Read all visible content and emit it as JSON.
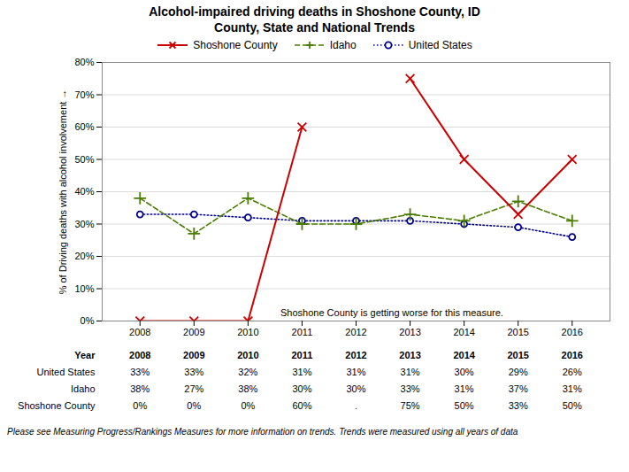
{
  "chart_data": {
    "type": "line",
    "title": "Alcohol-impaired driving deaths in Shoshone County, ID",
    "subtitle": "County, State and National Trends",
    "x": [
      2008,
      2009,
      2010,
      2011,
      2012,
      2013,
      2014,
      2015,
      2016
    ],
    "series": [
      {
        "name": "Shoshone County",
        "color": "#cc0000",
        "marker": "x",
        "line_style": "solid",
        "values": [
          0,
          0,
          0,
          60,
          null,
          75,
          50,
          33,
          50
        ]
      },
      {
        "name": "Idaho",
        "color": "#4a7c00",
        "marker": "plus",
        "line_style": "dashed",
        "values": [
          38,
          27,
          38,
          30,
          30,
          33,
          31,
          37,
          31
        ]
      },
      {
        "name": "United States",
        "color": "#00008b",
        "marker": "circle",
        "line_style": "dotted",
        "values": [
          33,
          33,
          32,
          31,
          31,
          31,
          30,
          29,
          26
        ]
      }
    ],
    "xlim": [
      2007.3,
      2016.7
    ],
    "xticks": [
      2008,
      2009,
      2010,
      2011,
      2012,
      2013,
      2014,
      2015,
      2016
    ],
    "ylim": [
      0,
      80
    ],
    "yticks": [
      {
        "value": 0,
        "label": "0%"
      },
      {
        "value": 10,
        "label": "10%"
      },
      {
        "value": 20,
        "label": "20%"
      },
      {
        "value": 30,
        "label": "30%"
      },
      {
        "value": 40,
        "label": "40%"
      },
      {
        "value": 50,
        "label": "50%"
      },
      {
        "value": 60,
        "label": "60%"
      },
      {
        "value": 70,
        "label": "70%"
      },
      {
        "value": 80,
        "label": "80%"
      }
    ],
    "ylabel": "% of Driving deaths with alcohol involvement",
    "grid": "y",
    "legend": "top",
    "annotations": [
      {
        "text": "Shoshone County is getting worse for this measure.",
        "x": 2010.6,
        "y": 1.5
      }
    ],
    "table": {
      "header": "Year",
      "rows": [
        {
          "name": "United States",
          "value_labels": [
            "33%",
            "33%",
            "32%",
            "31%",
            "31%",
            "31%",
            "30%",
            "29%",
            "26%"
          ]
        },
        {
          "name": "Idaho",
          "value_labels": [
            "38%",
            "27%",
            "38%",
            "30%",
            "30%",
            "33%",
            "31%",
            "37%",
            "31%"
          ]
        },
        {
          "name": "Shoshone County",
          "value_labels": [
            "0%",
            "0%",
            "0%",
            "60%",
            ".",
            "75%",
            "50%",
            "33%",
            "50%"
          ]
        }
      ]
    },
    "footnote": "Please see Measuring Progress/Rankings Measures for more information on trends. Trends were measured using all years of data"
  }
}
